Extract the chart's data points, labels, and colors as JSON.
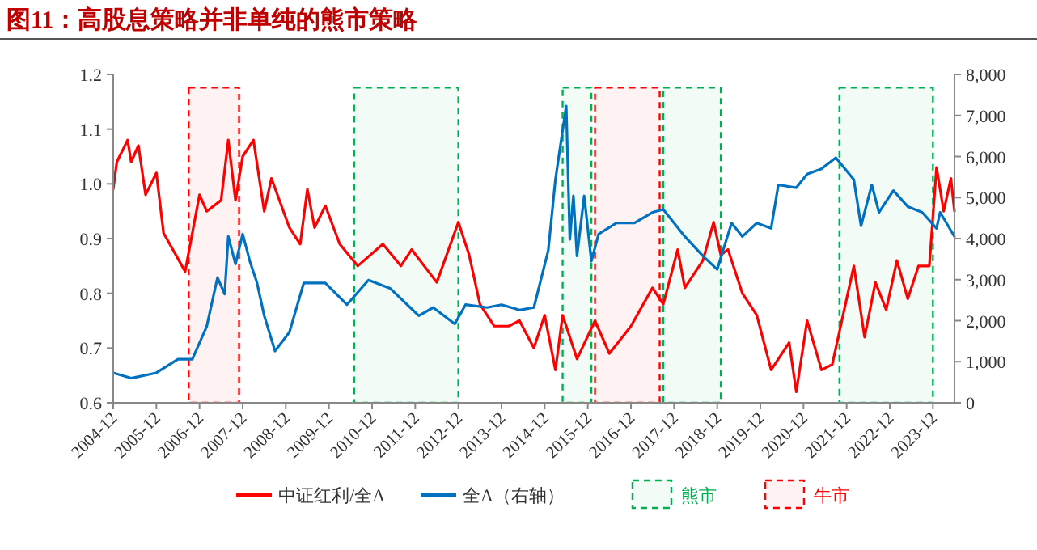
{
  "chart_data": {
    "type": "line",
    "title": "图11：高股息策略并非单纯的熊市策略",
    "xlim": [
      "2004-12",
      "2024-06"
    ],
    "xticks": [
      "2004-12",
      "2005-12",
      "2006-12",
      "2007-12",
      "2008-12",
      "2009-12",
      "2010-12",
      "2011-12",
      "2012-12",
      "2013-12",
      "2014-12",
      "2015-12",
      "2016-12",
      "2017-12",
      "2018-12",
      "2019-12",
      "2020-12",
      "2021-12",
      "2022-12",
      "2023-12"
    ],
    "ylim": [
      0.6,
      1.2
    ],
    "yticks": [
      0.6,
      0.7,
      0.8,
      0.9,
      {
        "value": 1,
        "label": "1.0"
      },
      1.1,
      1.2
    ],
    "y2lim": [
      0,
      8000
    ],
    "y2ticks": [
      0,
      {
        "value": 1000,
        "label": "1,000"
      },
      {
        "value": 2000,
        "label": "2,000"
      },
      {
        "value": 3000,
        "label": "3,000"
      },
      {
        "value": 4000,
        "label": "4,000"
      },
      {
        "value": 5000,
        "label": "5,000"
      },
      {
        "value": 6000,
        "label": "6,000"
      },
      {
        "value": 7000,
        "label": "7,000"
      },
      {
        "value": 8000,
        "label": "8,000"
      }
    ],
    "legend": "bottom",
    "series": [
      {
        "name": "中证红利/全A",
        "color": "#ff0000",
        "x": [
          "2004-12",
          "2005-01",
          "2005-04",
          "2005-05",
          "2005-07",
          "2005-09",
          "2005-12",
          "2006-02",
          "2006-08",
          "2006-12",
          "2007-02",
          "2007-06",
          "2007-08",
          "2007-10",
          "2007-12",
          "2008-03",
          "2008-06",
          "2008-08",
          "2009-01",
          "2009-04",
          "2009-06",
          "2009-08",
          "2009-11",
          "2010-03",
          "2010-08",
          "2011-03",
          "2011-08",
          "2011-11",
          "2012-06",
          "2012-12",
          "2013-03",
          "2013-06",
          "2013-10",
          "2014-02",
          "2014-05",
          "2014-09",
          "2014-12",
          "2015-03",
          "2015-05",
          "2015-09",
          "2016-02",
          "2016-06",
          "2016-12",
          "2017-06",
          "2017-09",
          "2018-01",
          "2018-03",
          "2018-08",
          "2018-11",
          "2019-01",
          "2019-03",
          "2019-07",
          "2019-11",
          "2020-03",
          "2020-08",
          "2020-10",
          "2021-01",
          "2021-05",
          "2021-08",
          "2022-02",
          "2022-05",
          "2022-08",
          "2022-11",
          "2023-02",
          "2023-05",
          "2023-08",
          "2023-11",
          "2024-01",
          "2024-03",
          "2024-05",
          "2024-06"
        ],
        "values": [
          0.99,
          1.04,
          1.08,
          1.04,
          1.07,
          0.98,
          1.02,
          0.91,
          0.84,
          0.98,
          0.95,
          0.97,
          1.08,
          0.97,
          1.05,
          1.08,
          0.95,
          1.01,
          0.92,
          0.89,
          0.99,
          0.92,
          0.96,
          0.89,
          0.85,
          0.89,
          0.85,
          0.88,
          0.82,
          0.93,
          0.87,
          0.78,
          0.74,
          0.74,
          0.75,
          0.7,
          0.76,
          0.66,
          0.76,
          0.68,
          0.75,
          0.69,
          0.74,
          0.81,
          0.78,
          0.88,
          0.81,
          0.86,
          0.93,
          0.87,
          0.88,
          0.8,
          0.76,
          0.66,
          0.71,
          0.62,
          0.75,
          0.66,
          0.67,
          0.85,
          0.72,
          0.82,
          0.77,
          0.86,
          0.79,
          0.85,
          0.85,
          1.03,
          0.95,
          1.01,
          0.95
        ]
      },
      {
        "name": "全A（右轴）",
        "color": "#0070c0",
        "axis": "y2",
        "x": [
          "2004-12",
          "2005-05",
          "2005-12",
          "2006-06",
          "2006-10",
          "2007-02",
          "2007-05",
          "2007-07",
          "2007-08",
          "2007-10",
          "2007-12",
          "2008-02",
          "2008-04",
          "2008-06",
          "2008-09",
          "2009-01",
          "2009-05",
          "2009-11",
          "2010-05",
          "2010-11",
          "2011-05",
          "2012-01",
          "2012-05",
          "2012-11",
          "2013-02",
          "2013-08",
          "2013-12",
          "2014-05",
          "2014-09",
          "2015-01",
          "2015-03",
          "2015-06",
          "2015-07",
          "2015-08",
          "2015-09",
          "2015-11",
          "2016-01",
          "2016-03",
          "2016-08",
          "2017-01",
          "2017-06",
          "2017-09",
          "2018-03",
          "2018-08",
          "2018-12",
          "2019-04",
          "2019-07",
          "2019-11",
          "2020-03",
          "2020-05",
          "2020-10",
          "2021-01",
          "2021-05",
          "2021-09",
          "2022-02",
          "2022-04",
          "2022-07",
          "2022-09",
          "2023-01",
          "2023-05",
          "2023-09",
          "2024-01",
          "2024-02",
          "2024-06"
        ],
        "values": [
          730,
          600,
          730,
          1060,
          1060,
          1860,
          3050,
          2650,
          4050,
          3380,
          4110,
          3450,
          2920,
          2120,
          1260,
          1720,
          2920,
          2920,
          2390,
          2990,
          2790,
          2120,
          2320,
          1920,
          2390,
          2320,
          2390,
          2260,
          2320,
          3710,
          5440,
          7230,
          3980,
          5040,
          3580,
          5040,
          3450,
          4110,
          4380,
          4380,
          4640,
          4710,
          4050,
          3580,
          3250,
          4380,
          4050,
          4380,
          4250,
          5310,
          5240,
          5570,
          5700,
          5970,
          5440,
          4310,
          5310,
          4640,
          5170,
          4780,
          4640,
          4250,
          4640,
          4050
        ]
      }
    ],
    "bands": [
      {
        "axis": "x",
        "from": "2010-07",
        "to": "2012-12",
        "label": "熊市",
        "color": "#00b050"
      },
      {
        "axis": "x",
        "from": "2006-09",
        "to": "2007-11",
        "label": "牛市",
        "color": "#ff0000"
      },
      {
        "axis": "x",
        "from": "2015-05",
        "to": "2016-01",
        "color": "#00b050"
      },
      {
        "axis": "x",
        "from": "2016-02",
        "to": "2017-08",
        "color": "#ff0000"
      },
      {
        "axis": "x",
        "from": "2017-09",
        "to": "2019-01",
        "color": "#00b050"
      },
      {
        "axis": "x",
        "from": "2021-10",
        "to": "2023-12",
        "color": "#00b050"
      }
    ]
  }
}
